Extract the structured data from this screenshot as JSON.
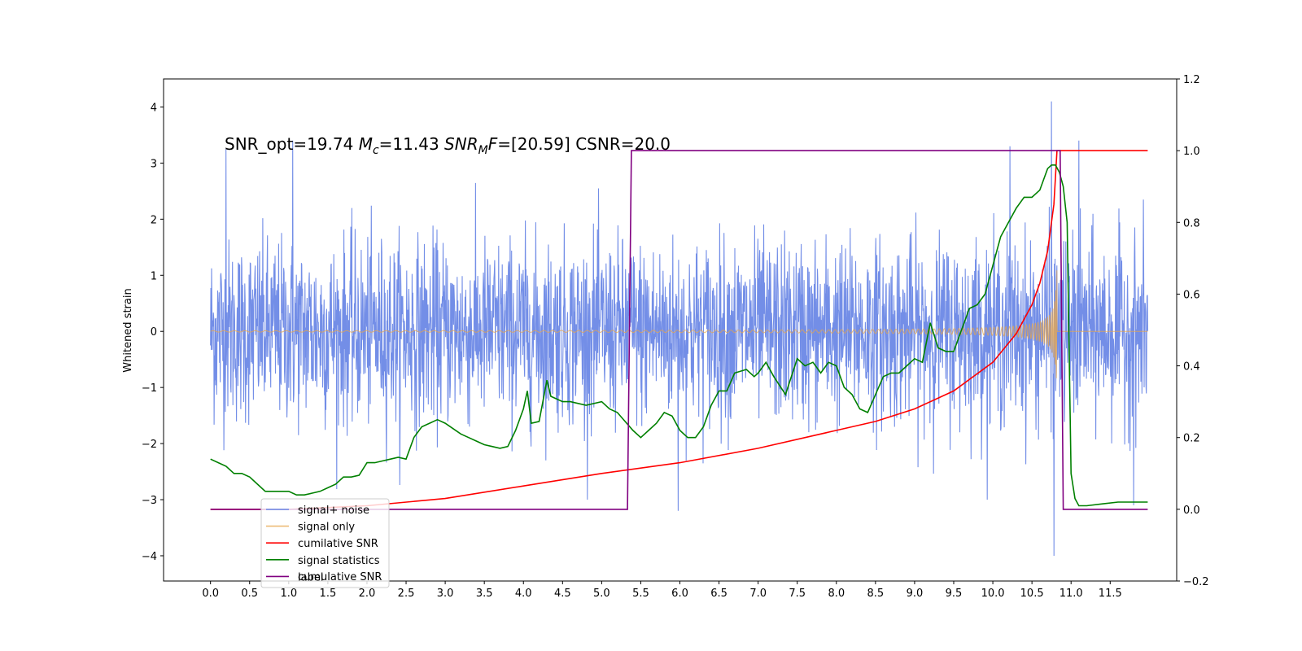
{
  "chart_data": {
    "type": "line",
    "annotation": {
      "part1": "SNR_opt=19.74 ",
      "mc_symbol": "M",
      "mc_sub": "c",
      "part2": "=11.43  ",
      "snr_symbol": "SNR",
      "snr_sub": "M",
      "f_symbol": "F",
      "part3": "=[20.59] CSNR=20.0"
    },
    "ylabel": "Whitened strain",
    "xlim": [
      -0.6,
      12.35
    ],
    "ylim": [
      -4.45,
      4.5
    ],
    "y2lim": [
      -0.2,
      1.2
    ],
    "xticks": [
      "0.0",
      "0.5",
      "1.0",
      "1.5",
      "2.0",
      "2.5",
      "3.0",
      "3.5",
      "4.0",
      "4.5",
      "5.0",
      "5.5",
      "6.0",
      "6.5",
      "7.0",
      "7.5",
      "8.0",
      "8.5",
      "9.0",
      "9.5",
      "10.0",
      "10.5",
      "11.0",
      "11.5"
    ],
    "yticks": [
      "−4",
      "−3",
      "−2",
      "−1",
      "0",
      "1",
      "2",
      "3",
      "4"
    ],
    "y2ticks": [
      "−0.2",
      "0.0",
      "0.2",
      "0.4",
      "0.6",
      "0.8",
      "1.0",
      "1.2"
    ],
    "grid": false,
    "legend": {
      "placement": "lower-left",
      "entries": [
        "signal+ noise",
        "signal only",
        "cumilative SNR",
        "signal statistics",
        "label"
      ],
      "ghost_text": "cumulative SNR"
    },
    "series": [
      {
        "name": "signal+ noise",
        "color": "#6b88e6",
        "axis": "left",
        "description_values": {
          "x_start": 0.0,
          "x_end": 11.98,
          "std": 0.95,
          "max": 4.1,
          "min": -4.0
        },
        "spikes": [
          [
            0.2,
            3.25
          ],
          [
            1.05,
            3.4
          ],
          [
            10.22,
            3.3
          ],
          [
            10.75,
            4.1
          ],
          [
            10.78,
            -4.0
          ],
          [
            11.1,
            3.4
          ],
          [
            5.98,
            -3.2
          ],
          [
            11.8,
            -3.1
          ]
        ]
      },
      {
        "name": "signal only",
        "color": "#e8a54a",
        "axis": "left",
        "chirp": {
          "t_c": 10.82,
          "x_start": 0.0,
          "x_end": 11.98,
          "peak_amplitude": 1.55
        }
      },
      {
        "name": "cumilative SNR",
        "color": "#ff0000",
        "axis": "right",
        "points": [
          [
            0.0,
            0.0
          ],
          [
            1.0,
            0.0
          ],
          [
            2.0,
            0.01
          ],
          [
            3.0,
            0.03
          ],
          [
            4.0,
            0.065
          ],
          [
            5.0,
            0.1
          ],
          [
            6.0,
            0.13
          ],
          [
            7.0,
            0.17
          ],
          [
            8.0,
            0.22
          ],
          [
            8.5,
            0.245
          ],
          [
            9.0,
            0.28
          ],
          [
            9.5,
            0.33
          ],
          [
            10.0,
            0.41
          ],
          [
            10.3,
            0.49
          ],
          [
            10.5,
            0.57
          ],
          [
            10.6,
            0.63
          ],
          [
            10.7,
            0.72
          ],
          [
            10.78,
            0.85
          ],
          [
            10.82,
            1.0
          ],
          [
            11.98,
            1.0
          ]
        ]
      },
      {
        "name": "signal statistics",
        "color": "#008000",
        "axis": "right",
        "points": [
          [
            0.0,
            0.14
          ],
          [
            0.1,
            0.13
          ],
          [
            0.2,
            0.12
          ],
          [
            0.3,
            0.1
          ],
          [
            0.4,
            0.1
          ],
          [
            0.5,
            0.09
          ],
          [
            0.6,
            0.07
          ],
          [
            0.7,
            0.05
          ],
          [
            0.8,
            0.05
          ],
          [
            0.9,
            0.05
          ],
          [
            1.0,
            0.05
          ],
          [
            1.1,
            0.04
          ],
          [
            1.2,
            0.04
          ],
          [
            1.3,
            0.045
          ],
          [
            1.4,
            0.05
          ],
          [
            1.5,
            0.06
          ],
          [
            1.6,
            0.07
          ],
          [
            1.7,
            0.09
          ],
          [
            1.8,
            0.09
          ],
          [
            1.9,
            0.095
          ],
          [
            2.0,
            0.13
          ],
          [
            2.1,
            0.13
          ],
          [
            2.2,
            0.135
          ],
          [
            2.3,
            0.14
          ],
          [
            2.4,
            0.145
          ],
          [
            2.5,
            0.14
          ],
          [
            2.6,
            0.2
          ],
          [
            2.7,
            0.23
          ],
          [
            2.8,
            0.24
          ],
          [
            2.9,
            0.25
          ],
          [
            3.0,
            0.24
          ],
          [
            3.1,
            0.225
          ],
          [
            3.2,
            0.21
          ],
          [
            3.3,
            0.2
          ],
          [
            3.4,
            0.19
          ],
          [
            3.5,
            0.18
          ],
          [
            3.6,
            0.175
          ],
          [
            3.7,
            0.17
          ],
          [
            3.8,
            0.175
          ],
          [
            3.9,
            0.22
          ],
          [
            4.0,
            0.28
          ],
          [
            4.05,
            0.33
          ],
          [
            4.1,
            0.24
          ],
          [
            4.2,
            0.245
          ],
          [
            4.3,
            0.36
          ],
          [
            4.35,
            0.315
          ],
          [
            4.5,
            0.3
          ],
          [
            4.6,
            0.3
          ],
          [
            4.8,
            0.29
          ],
          [
            5.0,
            0.3
          ],
          [
            5.1,
            0.28
          ],
          [
            5.2,
            0.27
          ],
          [
            5.4,
            0.22
          ],
          [
            5.5,
            0.2
          ],
          [
            5.6,
            0.22
          ],
          [
            5.7,
            0.24
          ],
          [
            5.8,
            0.27
          ],
          [
            5.9,
            0.26
          ],
          [
            6.0,
            0.22
          ],
          [
            6.1,
            0.2
          ],
          [
            6.2,
            0.2
          ],
          [
            6.3,
            0.23
          ],
          [
            6.4,
            0.29
          ],
          [
            6.5,
            0.33
          ],
          [
            6.6,
            0.33
          ],
          [
            6.7,
            0.38
          ],
          [
            6.85,
            0.39
          ],
          [
            6.95,
            0.37
          ],
          [
            7.0,
            0.38
          ],
          [
            7.1,
            0.41
          ],
          [
            7.2,
            0.37
          ],
          [
            7.35,
            0.32
          ],
          [
            7.5,
            0.42
          ],
          [
            7.6,
            0.4
          ],
          [
            7.7,
            0.41
          ],
          [
            7.8,
            0.38
          ],
          [
            7.9,
            0.41
          ],
          [
            8.0,
            0.4
          ],
          [
            8.1,
            0.34
          ],
          [
            8.2,
            0.32
          ],
          [
            8.3,
            0.28
          ],
          [
            8.4,
            0.27
          ],
          [
            8.5,
            0.32
          ],
          [
            8.6,
            0.37
          ],
          [
            8.7,
            0.38
          ],
          [
            8.8,
            0.38
          ],
          [
            8.9,
            0.4
          ],
          [
            9.0,
            0.42
          ],
          [
            9.1,
            0.41
          ],
          [
            9.2,
            0.52
          ],
          [
            9.3,
            0.45
          ],
          [
            9.4,
            0.44
          ],
          [
            9.5,
            0.44
          ],
          [
            9.6,
            0.5
          ],
          [
            9.7,
            0.56
          ],
          [
            9.8,
            0.57
          ],
          [
            9.9,
            0.6
          ],
          [
            10.0,
            0.68
          ],
          [
            10.1,
            0.76
          ],
          [
            10.2,
            0.8
          ],
          [
            10.3,
            0.84
          ],
          [
            10.4,
            0.87
          ],
          [
            10.5,
            0.87
          ],
          [
            10.6,
            0.89
          ],
          [
            10.65,
            0.92
          ],
          [
            10.7,
            0.95
          ],
          [
            10.75,
            0.96
          ],
          [
            10.8,
            0.96
          ],
          [
            10.85,
            0.94
          ],
          [
            10.9,
            0.9
          ],
          [
            10.95,
            0.8
          ],
          [
            11.0,
            0.1
          ],
          [
            11.05,
            0.03
          ],
          [
            11.1,
            0.01
          ],
          [
            11.2,
            0.01
          ],
          [
            11.4,
            0.015
          ],
          [
            11.6,
            0.02
          ],
          [
            11.98,
            0.02
          ]
        ]
      },
      {
        "name": "label",
        "color": "#800080",
        "axis": "right",
        "points": [
          [
            0.0,
            0.0
          ],
          [
            5.33,
            0.0
          ],
          [
            5.38,
            1.0
          ],
          [
            10.86,
            1.0
          ],
          [
            10.9,
            0.0
          ],
          [
            11.98,
            0.0
          ]
        ]
      }
    ]
  }
}
